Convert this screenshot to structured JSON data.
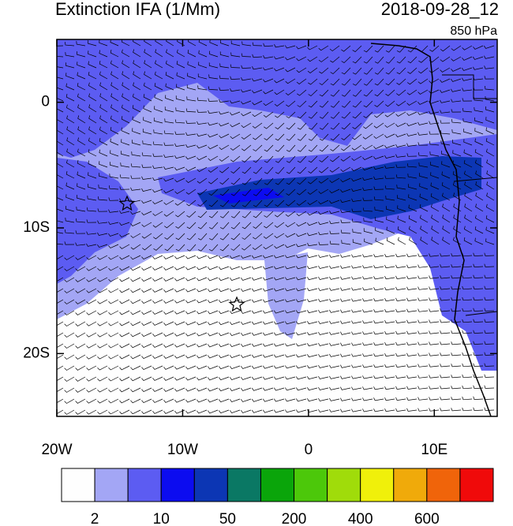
{
  "title": "Extinction IFA (1/Mm)",
  "date": "2018-09-28_12",
  "level": "850 hPa",
  "map": {
    "xlim": [
      -20,
      15
    ],
    "ylim": [
      -25,
      5
    ],
    "xticks": [
      {
        "value": -20,
        "label": "20W"
      },
      {
        "value": -10,
        "label": "10W"
      },
      0,
      {
        "value": 10,
        "label": "10E"
      }
    ],
    "yticks": [
      0,
      {
        "value": -10,
        "label": "10S"
      },
      {
        "value": -20,
        "label": "20S"
      }
    ]
  },
  "colorbar": {
    "colors": [
      "#fefefe",
      "#a3a6f5",
      "#5c5cf2",
      "#0c0cf0",
      "#0c36b4",
      "#0a7864",
      "#0aa50a",
      "#4cc80a",
      "#a0dc0a",
      "#f0f00a",
      "#f0aa0a",
      "#f0640a",
      "#f00a0a"
    ],
    "labels": [
      2,
      10,
      50,
      200,
      400,
      600
    ]
  }
}
